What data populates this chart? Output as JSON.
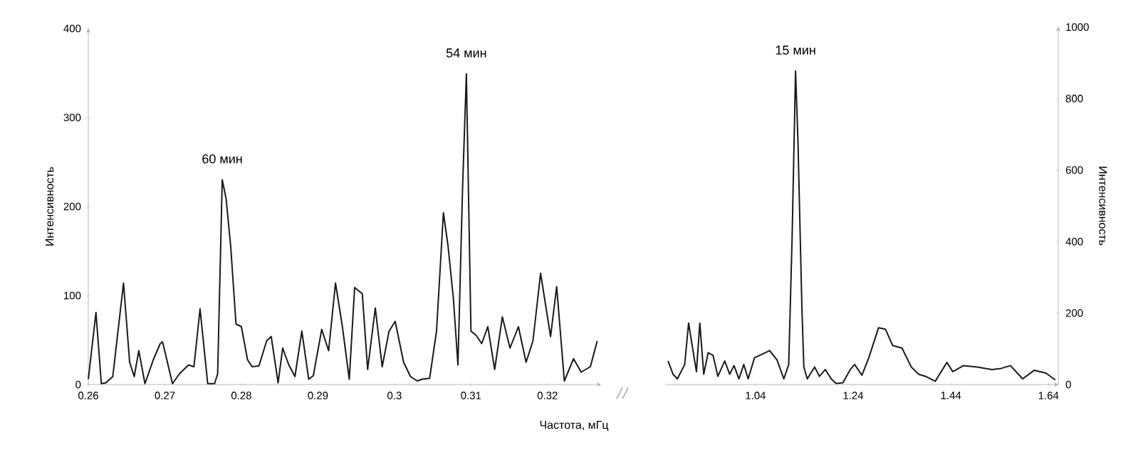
{
  "chart_data": [
    {
      "type": "line",
      "xlabel": "Частота, мГц",
      "ylabel": "Интенсивность",
      "color": "#1a1a1a",
      "marker": "none",
      "xlim": [
        0.26,
        0.327
      ],
      "ylim": [
        0,
        400
      ],
      "xticks": [
        0.26,
        0.27,
        0.28,
        0.29,
        0.3,
        0.31,
        0.32
      ],
      "yticks": [
        0,
        100,
        200,
        300,
        400
      ],
      "annotations": [
        {
          "text": "60 мин",
          "x": 0.2775,
          "y": 230
        },
        {
          "text": "54 мин",
          "x": 0.3094,
          "y": 349
        }
      ],
      "x": [
        0.26,
        0.261,
        0.2617,
        0.2623,
        0.2632,
        0.2646,
        0.2654,
        0.266,
        0.2666,
        0.2674,
        0.2685,
        0.2694,
        0.2697,
        0.271,
        0.2719,
        0.2731,
        0.2738,
        0.2746,
        0.2756,
        0.2765,
        0.2769,
        0.2775,
        0.278,
        0.2786,
        0.2793,
        0.28,
        0.2808,
        0.2814,
        0.2823,
        0.2833,
        0.2839,
        0.2848,
        0.2854,
        0.2862,
        0.287,
        0.2879,
        0.2888,
        0.2894,
        0.2905,
        0.2914,
        0.2923,
        0.2932,
        0.2941,
        0.2948,
        0.2958,
        0.2965,
        0.2975,
        0.2984,
        0.2993,
        0.3001,
        0.3012,
        0.3021,
        0.303,
        0.3036,
        0.3046,
        0.3055,
        0.3064,
        0.307,
        0.3077,
        0.3083,
        0.3089,
        0.3094,
        0.31,
        0.3107,
        0.3114,
        0.3122,
        0.3131,
        0.3141,
        0.3151,
        0.3162,
        0.3172,
        0.3181,
        0.3191,
        0.3204,
        0.3212,
        0.3222,
        0.3234,
        0.3244,
        0.3256,
        0.3265
      ],
      "values": [
        6,
        81,
        1,
        2,
        9,
        114,
        25,
        9,
        38,
        1,
        28,
        46,
        48,
        1,
        12,
        22,
        20,
        85,
        1,
        1,
        12,
        230,
        209,
        156,
        68,
        65,
        28,
        20,
        21,
        49,
        54,
        2,
        41,
        22,
        9,
        60,
        6,
        10,
        62,
        38,
        114,
        65,
        6,
        109,
        102,
        17,
        86,
        20,
        60,
        71,
        25,
        9,
        4,
        6,
        7,
        60,
        193,
        156,
        97,
        22,
        220,
        349,
        60,
        55,
        46,
        65,
        17,
        76,
        41,
        65,
        25,
        49,
        125,
        54,
        110,
        4,
        29,
        14,
        20,
        49
      ]
    },
    {
      "type": "line",
      "ylabel": "Интенсивность",
      "color": "#1a1a1a",
      "marker": "none",
      "xlim": [
        0.855,
        1.66
      ],
      "ylim": [
        0,
        1000
      ],
      "xticks": [
        1.04,
        1.24,
        1.44,
        1.64
      ],
      "yticks": [
        0,
        200,
        400,
        600,
        800,
        1000
      ],
      "annotations": [
        {
          "text": "15 мин",
          "x": 1.122,
          "y": 877
        }
      ],
      "x": [
        0.861,
        0.871,
        0.88,
        0.895,
        0.903,
        0.912,
        0.919,
        0.926,
        0.934,
        0.943,
        0.953,
        0.963,
        0.977,
        0.987,
        0.996,
        1.006,
        1.016,
        1.025,
        1.038,
        1.069,
        1.084,
        1.098,
        1.108,
        1.115,
        1.122,
        1.127,
        1.135,
        1.139,
        1.146,
        1.161,
        1.171,
        1.183,
        1.195,
        1.205,
        1.219,
        1.234,
        1.243,
        1.258,
        1.272,
        1.292,
        1.306,
        1.321,
        1.34,
        1.359,
        1.374,
        1.388,
        1.408,
        1.432,
        1.444,
        1.466,
        1.495,
        1.524,
        1.543,
        1.562,
        1.587,
        1.611,
        1.635,
        1.654
      ],
      "values": [
        66,
        29,
        16,
        56,
        172,
        95,
        36,
        172,
        29,
        89,
        82,
        23,
        66,
        29,
        53,
        16,
        56,
        16,
        75,
        95,
        69,
        16,
        56,
        413,
        877,
        678,
        215,
        49,
        16,
        49,
        23,
        42,
        16,
        3,
        5,
        42,
        56,
        26,
        75,
        159,
        155,
        109,
        102,
        49,
        29,
        23,
        9,
        62,
        36,
        53,
        49,
        42,
        45,
        53,
        16,
        40,
        32,
        13
      ]
    }
  ]
}
